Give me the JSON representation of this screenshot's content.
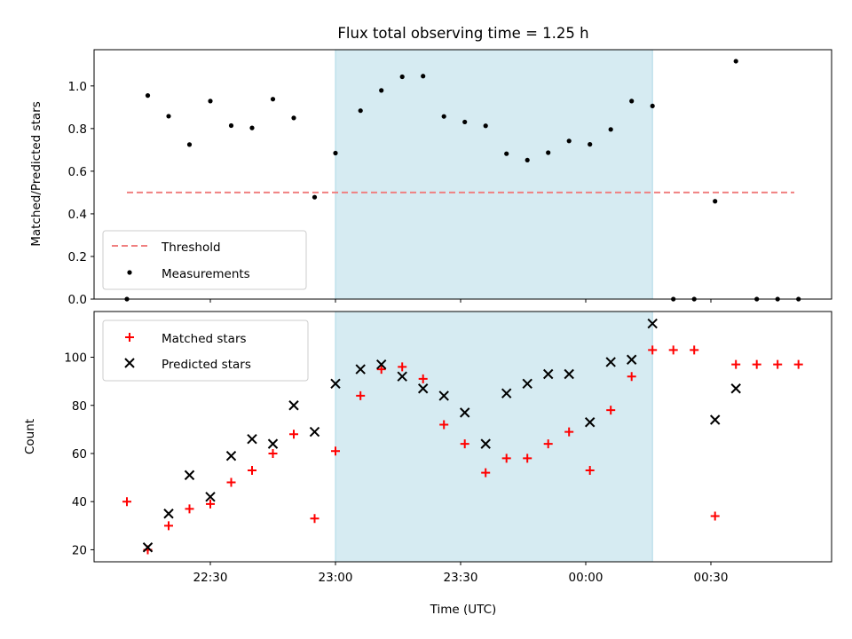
{
  "chart_data": [
    {
      "type": "scatter",
      "title": "Flux total observing time = 1.25 h",
      "xlabel": "",
      "ylabel": "Matched/Predicted stars",
      "ylim": [
        0,
        1.17
      ],
      "yticks": [
        "0.0",
        "0.2",
        "0.4",
        "0.6",
        "0.8",
        "1.0"
      ],
      "shaded_region": {
        "x_start": "23:00",
        "x_end": "00:16",
        "color": "#add8e6"
      },
      "threshold": {
        "name": "Threshold",
        "value": 0.5,
        "x_start": "22:10",
        "x_end": "00:50",
        "color": "#f08080"
      },
      "legend": {
        "position": "bottom-left",
        "entries": [
          "Threshold",
          "Measurements"
        ]
      },
      "series": [
        {
          "name": "Measurements",
          "marker": "dot",
          "color": "#000000",
          "x": [
            "22:10",
            "22:15",
            "22:20",
            "22:25",
            "22:30",
            "22:35",
            "22:40",
            "22:45",
            "22:50",
            "22:55",
            "23:00",
            "23:06",
            "23:11",
            "23:16",
            "23:21",
            "23:26",
            "23:31",
            "23:36",
            "23:41",
            "23:46",
            "23:51",
            "23:56",
            "00:01",
            "00:06",
            "00:11",
            "00:16",
            "00:21",
            "00:26",
            "00:31",
            "00:36",
            "00:41",
            "00:46",
            "00:51"
          ],
          "y": [
            0.0,
            0.955,
            0.858,
            0.725,
            0.929,
            0.814,
            0.803,
            0.938,
            0.85,
            0.478,
            0.685,
            0.884,
            0.979,
            1.043,
            1.046,
            0.857,
            0.831,
            0.813,
            0.682,
            0.652,
            0.687,
            0.742,
            0.726,
            0.796,
            0.929,
            0.906,
            0.0,
            0.0,
            0.459,
            1.116,
            0.0,
            0.0,
            0.0
          ]
        }
      ]
    },
    {
      "type": "scatter",
      "title": "",
      "xlabel": "Time (UTC)",
      "ylabel": "Count",
      "ylim": [
        15,
        119
      ],
      "yticks": [
        "20",
        "40",
        "60",
        "80",
        "100"
      ],
      "xticks": [
        "22:30",
        "23:00",
        "23:30",
        "00:00",
        "00:30"
      ],
      "shaded_region": {
        "x_start": "23:00",
        "x_end": "00:16",
        "color": "#add8e6"
      },
      "legend": {
        "position": "top-left",
        "entries": [
          "Matched stars",
          "Predicted stars"
        ]
      },
      "series": [
        {
          "name": "Matched stars",
          "marker": "plus",
          "color": "#ff0000",
          "x": [
            "22:10",
            "22:15",
            "22:20",
            "22:25",
            "22:30",
            "22:35",
            "22:40",
            "22:45",
            "22:50",
            "22:55",
            "23:00",
            "23:06",
            "23:11",
            "23:16",
            "23:21",
            "23:26",
            "23:31",
            "23:36",
            "23:41",
            "23:46",
            "23:51",
            "23:56",
            "00:01",
            "00:06",
            "00:11",
            "00:16",
            "00:21",
            "00:26",
            "00:31",
            "00:36",
            "00:41",
            "00:46",
            "00:51"
          ],
          "y": [
            40,
            20,
            30,
            37,
            39,
            48,
            53,
            60,
            68,
            33,
            61,
            84,
            95,
            96,
            91,
            72,
            64,
            52,
            58,
            58,
            64,
            69,
            53,
            78,
            92,
            103,
            103,
            103,
            34,
            97,
            97,
            97,
            97
          ]
        },
        {
          "name": "Predicted stars",
          "marker": "x",
          "color": "#000000",
          "x": [
            "22:15",
            "22:20",
            "22:25",
            "22:30",
            "22:35",
            "22:40",
            "22:45",
            "22:50",
            "22:55",
            "23:00",
            "23:06",
            "23:11",
            "23:16",
            "23:21",
            "23:26",
            "23:31",
            "23:36",
            "23:41",
            "23:46",
            "23:51",
            "23:56",
            "00:01",
            "00:06",
            "00:11",
            "00:16",
            "00:31",
            "00:36"
          ],
          "y": [
            21,
            35,
            51,
            42,
            59,
            66,
            64,
            80,
            69,
            89,
            95,
            97,
            92,
            87,
            84,
            77,
            64,
            85,
            89,
            93,
            93,
            73,
            98,
            99,
            114,
            74,
            87
          ]
        }
      ]
    }
  ]
}
